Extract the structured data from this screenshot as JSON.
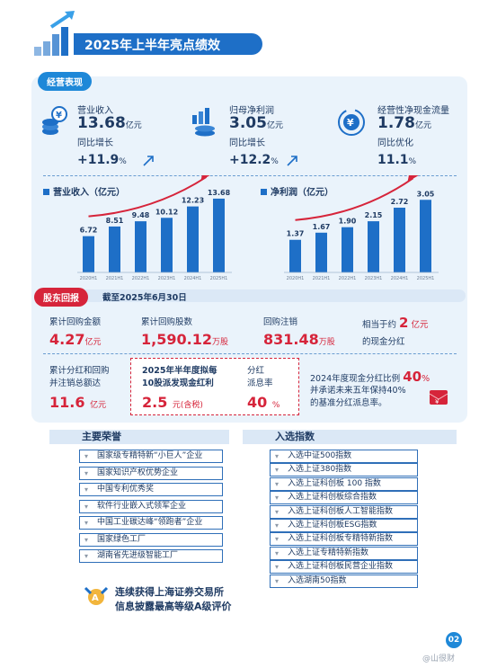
{
  "header": {
    "title": "2025年上半年亮点绩效"
  },
  "operations": {
    "label": "经营表现",
    "kpis": [
      {
        "icon": "coins-yen-icon",
        "label": "营业收入",
        "value": "13.68",
        "unit": "亿元",
        "growth_label": "同比增长",
        "growth": "+11.9",
        "growth_unit": "%"
      },
      {
        "icon": "bar-coins-icon",
        "label": "归母净利润",
        "value": "3.05",
        "unit": "亿元",
        "growth_label": "同比增长",
        "growth": "+12.2",
        "growth_unit": "%"
      },
      {
        "icon": "yen-cycle-icon",
        "label": "经营性净现金流量",
        "value": "1.78",
        "unit": "亿元",
        "growth_label": "同比优化",
        "growth": "11.1",
        "growth_unit": "%"
      }
    ]
  },
  "chart_data": [
    {
      "type": "bar",
      "title": "营业收入（亿元）",
      "categories": [
        "2020H1",
        "2021H1",
        "2022H1",
        "2023H1",
        "2024H1",
        "2025H1"
      ],
      "values": [
        6.72,
        8.51,
        9.48,
        10.12,
        12.23,
        13.68
      ],
      "value_labels": [
        "6.72",
        "8.51",
        "9.48",
        "10.12",
        "12.23",
        "13.68"
      ],
      "ylim": [
        0,
        15
      ]
    },
    {
      "type": "bar",
      "title": "净利润（亿元）",
      "categories": [
        "2020H1",
        "2021H1",
        "2022H1",
        "2023H1",
        "2024H1",
        "2025H1"
      ],
      "values": [
        1.37,
        1.67,
        1.9,
        2.15,
        2.72,
        3.05
      ],
      "value_labels": [
        "1.37",
        "1.67",
        "1.90",
        "2.15",
        "2.72",
        "3.05"
      ],
      "ylim": [
        0,
        3.4
      ]
    }
  ],
  "returns": {
    "label": "股东回报",
    "date": "截至2025年6月30日",
    "buyback_amount_label": "累计回购金额",
    "buyback_amount": "4.27",
    "buyback_amount_unit": "亿元",
    "buyback_shares_label": "累计回购股数",
    "buyback_shares": "1,590.12",
    "buyback_shares_unit": "万股",
    "cancel_label": "回购注销",
    "cancel_value": "831.48",
    "cancel_unit": "万股",
    "equiv_prefix": "相当于约",
    "equiv_value": "2",
    "equiv_unit": "亿元",
    "equiv_suffix": "的现金分红",
    "total_line1": "累计分红和回购",
    "total_line2": "并注销总额达",
    "total_value": "11.6",
    "total_unit": "亿元",
    "interim_line1": "2025年半年度拟每",
    "interim_line2": "10股派发现金红利",
    "interim_value": "2.5",
    "interim_unit": "元(含税)",
    "payout_line1": "分红",
    "payout_line2": "派息率",
    "payout_value": "40",
    "payout_unit": "%",
    "commit_line1": "2024年度现金分红比例",
    "commit_pct": "40",
    "commit_pct_unit": "%",
    "commit_line2": "并承诺未来五年保持40%",
    "commit_line3": "的基准分红派息率。"
  },
  "honors": {
    "title": "主要荣誉",
    "items": [
      "国家级专精特新“小巨人”企业",
      "国家知识产权优势企业",
      "中国专利优秀奖",
      "软件行业嵌入式领军企业",
      "中国工业碳达峰“领跑者”企业",
      "国家绿色工厂",
      "湖南省先进级智能工厂"
    ],
    "footer_line1": "连续获得上海证券交易所",
    "footer_line2": "信息披露最高等级A级评价"
  },
  "indices": {
    "title": "入选指数",
    "items": [
      "入选中证500指数",
      "入选上证380指数",
      "入选上证科创板 100 指数",
      "入选上证科创板综合指数",
      "入选上证科创板人工智能指数",
      "入选上证科创板ESG指数",
      "入选上证科创板专精特新指数",
      "入选上证专精特新指数",
      "入选上证科创板民营企业指数",
      "入选湖南50指数"
    ]
  },
  "footer": {
    "page": "02",
    "watermark": "@山很财"
  }
}
